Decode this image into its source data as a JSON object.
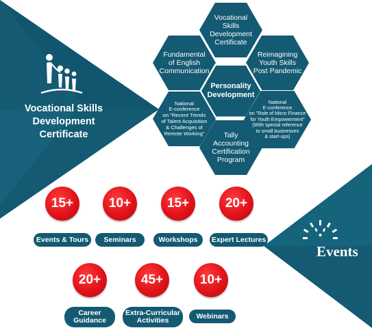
{
  "brand": {
    "title_lines": [
      "Vocational Skills",
      "Development",
      "Certificate"
    ]
  },
  "hexagons": {
    "top": "Vocational\nSkills\nDevelopment\nCertificate",
    "upper_left": "Fundamental\nof English\nCommunication",
    "upper_right": "Reimagining\nYouth Skills\nPost Pandemic",
    "center": "Personality\nDevelopment",
    "lower_left": "National\nE-conference\non \"Recent Trends\nof Talent Acquisition\n& Challenges of\nRemote Working\"",
    "lower_right": "National\nE-conference\non \"Role of Micro Finance\nfor Youth Empowerment\"\n(With special reference\nto small businesses\n& start-ups)",
    "bottom": "Tally\nAccounting\nCertification\nProgram"
  },
  "stats": [
    {
      "value": "15+",
      "label": "Events & Tours"
    },
    {
      "value": "10+",
      "label": "Seminars"
    },
    {
      "value": "15+",
      "label": "Workshops"
    },
    {
      "value": "20+",
      "label": "Expert Lectures"
    },
    {
      "value": "20+",
      "label": "Career\nGuidance"
    },
    {
      "value": "45+",
      "label": "Extra-Curricular\nActivities"
    },
    {
      "value": "10+",
      "label": "Webinars"
    }
  ],
  "events_logo_text": "Events",
  "colors": {
    "primary": "#135a72",
    "dark": "#0f4a5e",
    "accent": "#e0121a"
  }
}
